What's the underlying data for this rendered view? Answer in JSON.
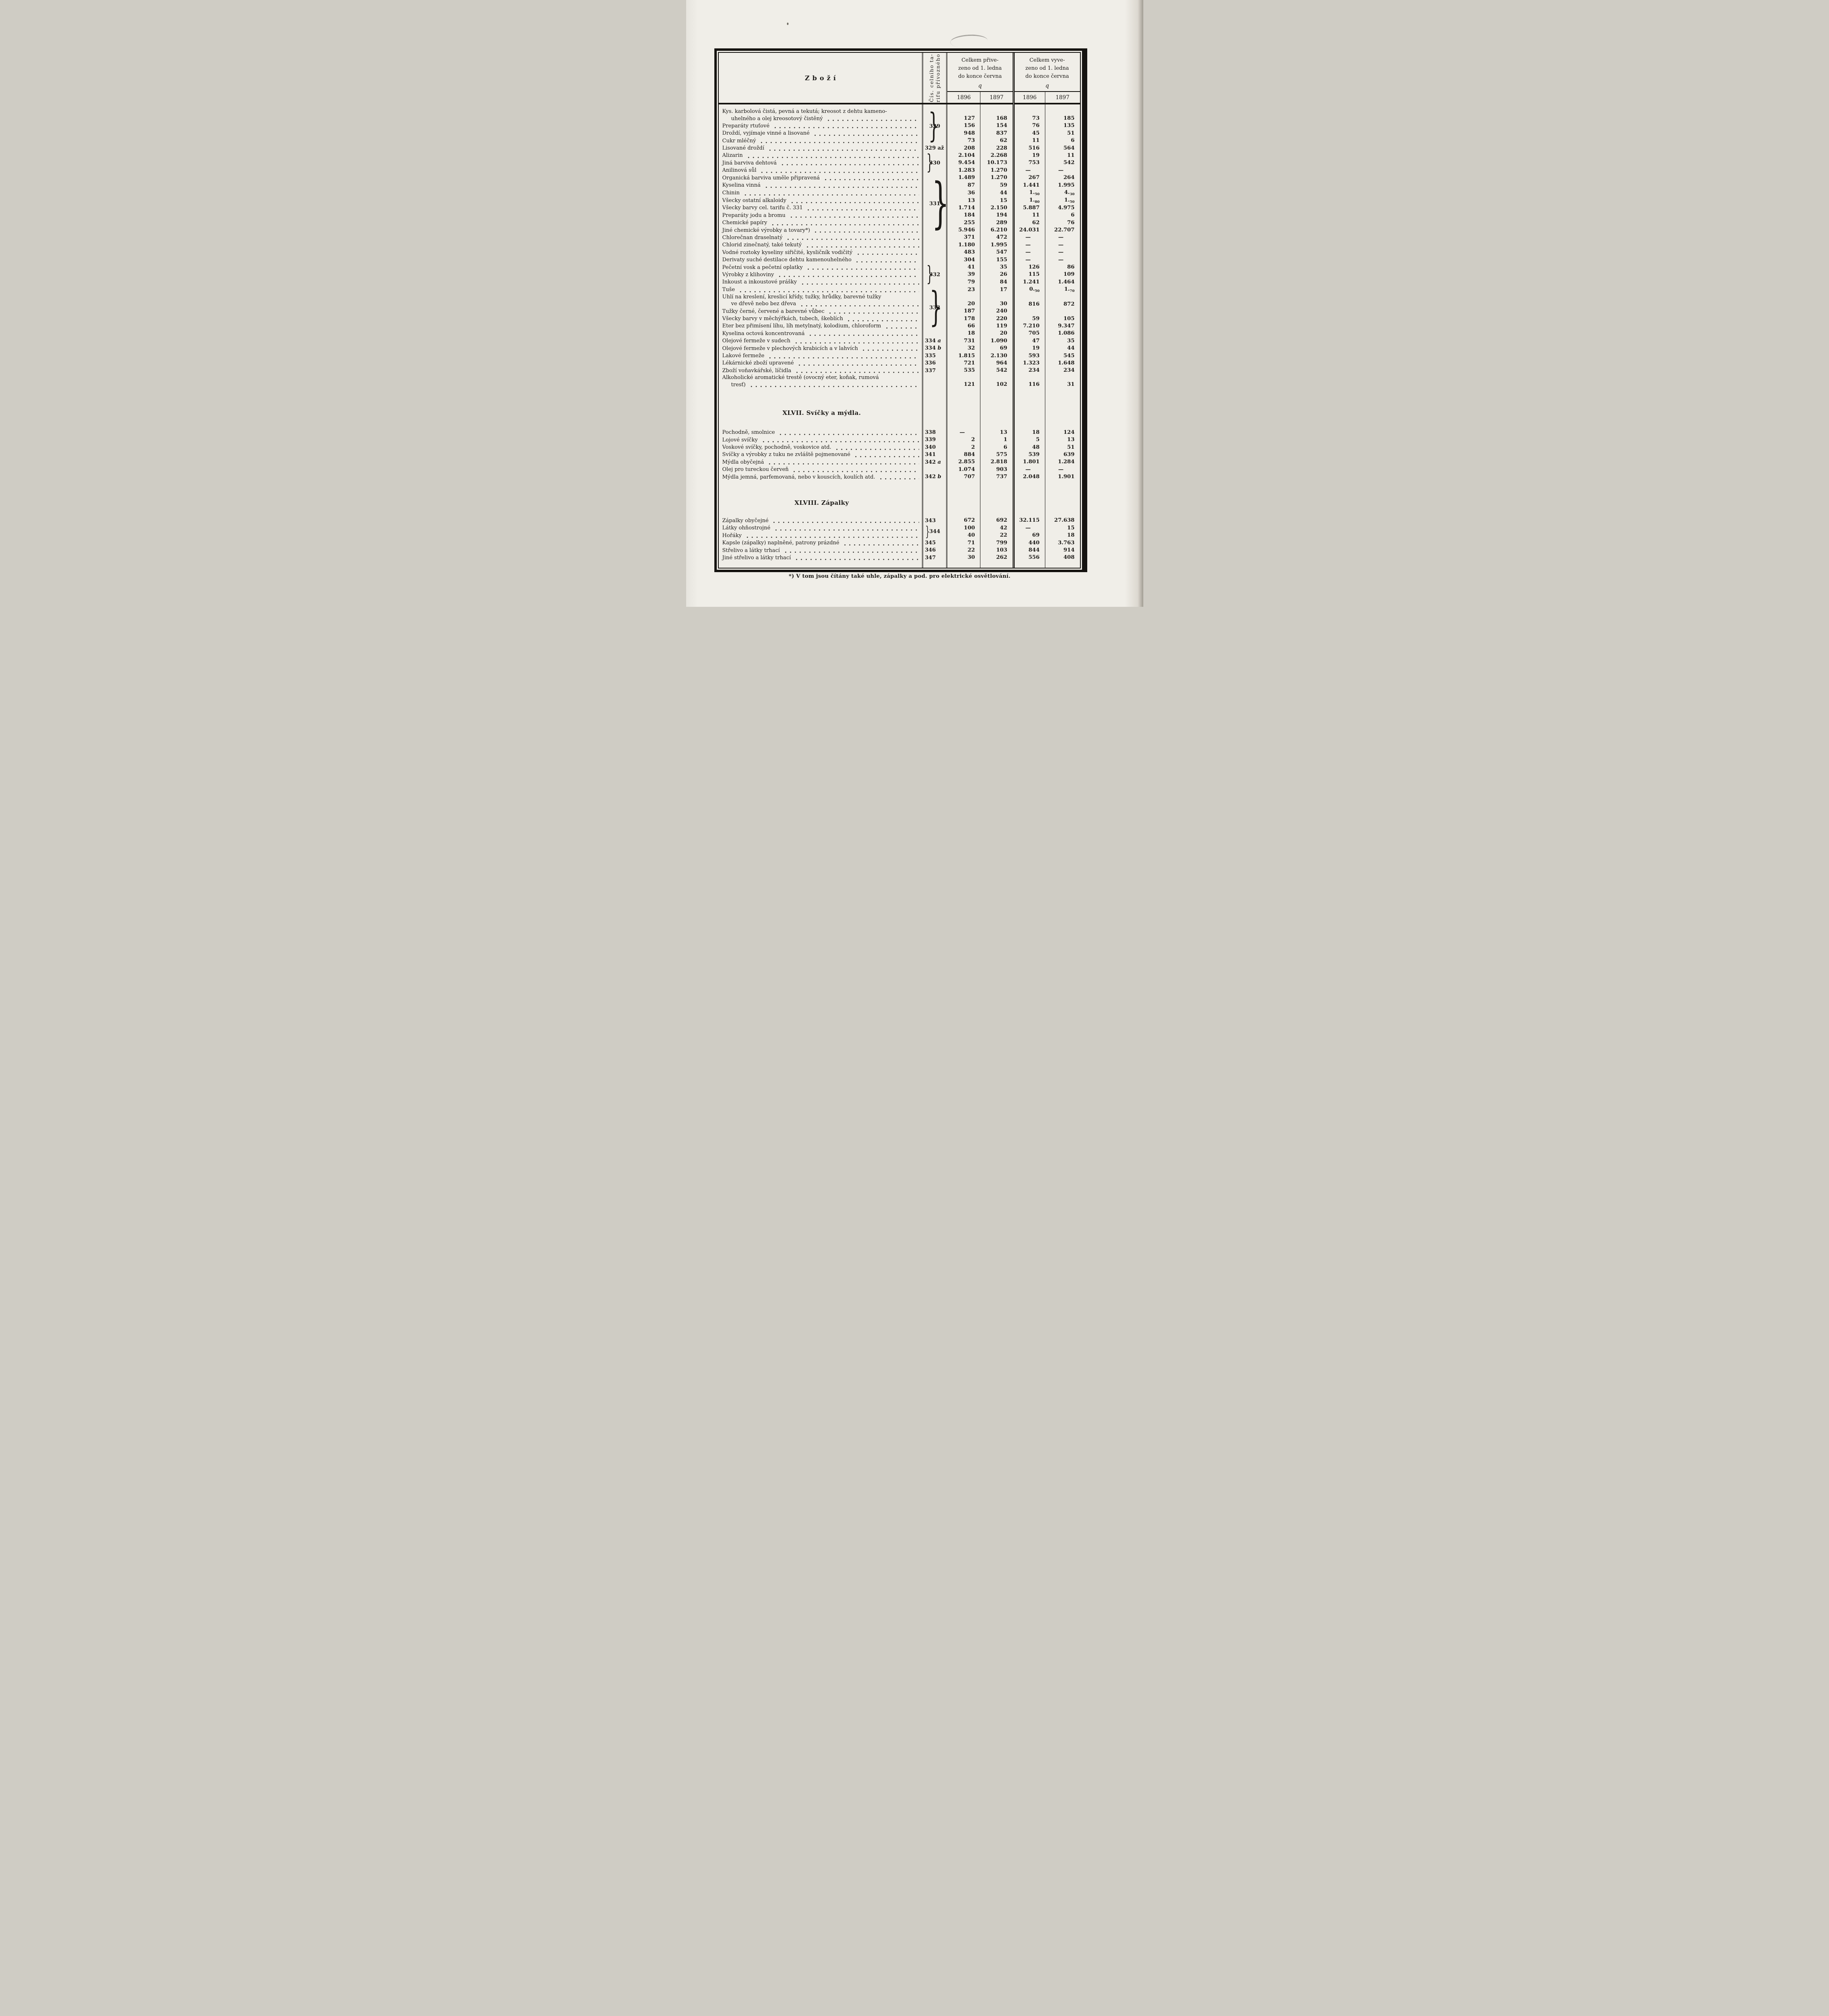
{
  "colors": {
    "paper": "#f0eee8",
    "ink": "#1c1a17",
    "frame": "#151310"
  },
  "table": {
    "header": {
      "goods_label": "Zboží",
      "tariff_col_lines": [
        "Čís. celního ta-",
        "rifu přívozného"
      ],
      "import_lines": [
        "Celkem přive-",
        "zeno od 1. ledna",
        "do konce června"
      ],
      "export_lines": [
        "Celkem vyve-",
        "zeno od 1. ledna",
        "do konce června"
      ],
      "unit": "q",
      "years": [
        "1896",
        "1897",
        "1896",
        "1897"
      ]
    },
    "sections": [
      {
        "heading": null,
        "rows": [
          {
            "label": [
              "Kys. karbolová čistá, pevná a tekutá; kreosot z dehtu kameno-",
              "uhelného a olej kreosotový čistěný"
            ],
            "tariff": {
              "text": "329",
              "span": 4,
              "brace": true
            },
            "v": [
              "127",
              "168",
              "73",
              "185"
            ]
          },
          {
            "label": "Preparáty rtuťové",
            "tariff": "skip",
            "v": [
              "156",
              "154",
              "76",
              "135"
            ]
          },
          {
            "label": "Droždí, vyjímaje vinné a lisované",
            "tariff": "skip",
            "v": [
              "948",
              "837",
              "45",
              "51"
            ]
          },
          {
            "label": "Cukr mléčný",
            "tariff": "skip",
            "v": [
              "73",
              "62",
              "11",
              "6"
            ]
          },
          {
            "label": "Lisované droždí",
            "tariff": {
              "text": "329 až",
              "span": 1,
              "brace": false
            },
            "v": [
              "208",
              "228",
              "516",
              "564"
            ]
          },
          {
            "label": "Alizarin",
            "tariff": {
              "text": "330",
              "span": 3,
              "brace": true
            },
            "v": [
              "2.104",
              "2.268",
              "19",
              "11"
            ]
          },
          {
            "label": "Jiná barviva dehtová",
            "tariff": "skip",
            "v": [
              "9.454",
              "10.173",
              "753",
              "542"
            ]
          },
          {
            "label": "Anilinová sůl",
            "tariff": "skip",
            "v": [
              "1.283",
              "1.270",
              "—",
              "—"
            ]
          },
          {
            "label": "Organická barviva uměle připravená",
            "tariff": {
              "text": "331",
              "span": 8,
              "brace": true
            },
            "v": [
              "1.489",
              "1.270",
              "267",
              "264"
            ]
          },
          {
            "label": "Kyselina vinná",
            "tariff": "skip",
            "v": [
              "87",
              "59",
              "1.441",
              "1.995"
            ]
          },
          {
            "label": "Chinin",
            "tariff": "skip",
            "v": [
              "36",
              "44",
              "1.~50",
              "4.~30"
            ]
          },
          {
            "label": "Všecky ostatní alkaloidy",
            "tariff": "skip",
            "v": [
              "13",
              "15",
              "1.~80",
              "1.~50"
            ]
          },
          {
            "label": "Všecky barvy cel. tarifu č. 331",
            "tariff": "skip",
            "v": [
              "1.714",
              "2.150",
              "5.887",
              "4.975"
            ]
          },
          {
            "label": "Preparáty jodu a bromu",
            "tariff": "skip",
            "v": [
              "184",
              "194",
              "11",
              "6"
            ]
          },
          {
            "label": "Chemické papíry",
            "tariff": "skip",
            "v": [
              "255",
              "289",
              "62",
              "76"
            ]
          },
          {
            "label": "Jiné chemické výrobky a tovary*)",
            "tariff": "skip",
            "v": [
              "5.946",
              "6.210",
              "24.031",
              "22.707"
            ]
          },
          {
            "label": "Chlorečnan draselnatý",
            "tariff": null,
            "v": [
              "371",
              "472",
              "—",
              "—"
            ]
          },
          {
            "label": "Chlorid zinečnatý, také tekutý",
            "tariff": null,
            "v": [
              "1.180",
              "1.995",
              "—",
              "—"
            ]
          },
          {
            "label": "Vodné roztoky kyseliny siřičité, kysličník vodičitý",
            "tariff": null,
            "v": [
              "483",
              "547",
              "—",
              "—"
            ]
          },
          {
            "label": "Derivaty suché destilace dehtu kamenouhelného",
            "tariff": null,
            "v": [
              "304",
              "155",
              "—",
              "—"
            ]
          },
          {
            "label": "Pečetní vosk a pečetní oplatky",
            "tariff": {
              "text": "332",
              "span": 3,
              "brace": true
            },
            "v": [
              "41",
              "35",
              "126",
              "86"
            ]
          },
          {
            "label": "Výrobky z klihoviny",
            "tariff": "skip",
            "v": [
              "39",
              "26",
              "115",
              "109"
            ]
          },
          {
            "label": "Inkoust a inkoustové prášky",
            "tariff": "skip",
            "v": [
              "79",
              "84",
              "1.241",
              "1.464"
            ]
          },
          {
            "label": "Tuše",
            "tariff": {
              "text": "333",
              "span": 5,
              "brace": true
            },
            "v": [
              "23",
              "17",
              "0.~50",
              "1.~70"
            ]
          },
          {
            "label": [
              "Uhlí na kreslení, kreslicí křídy, tužky, hrůdky, barevné tužky",
              "ve dřevě nebo bez dřeva"
            ],
            "tariff": "skip",
            "v": [
              "20",
              "30",
              {
                "t": "816",
                "span": 2
              },
              {
                "t": "872",
                "span": 2
              }
            ]
          },
          {
            "label": "Tužky černé, červené a barevné vůbec",
            "tariff": "skip",
            "v": [
              "187",
              "240",
              "skip",
              "skip"
            ]
          },
          {
            "label": "Všecky barvy v měchýřkách, tubech, škeblích",
            "tariff": "skip",
            "v": [
              "178",
              "220",
              "59",
              "105"
            ]
          },
          {
            "label": "Eter bez přimísení líhu, líh metylnatý, kolodium, chloroform",
            "tariff": "skip",
            "v": [
              "66",
              "119",
              "7.210",
              "9.347"
            ]
          },
          {
            "label": "Kyselina octová koncentrovaná",
            "tariff": null,
            "v": [
              "18",
              "20",
              "705",
              "1.086"
            ]
          },
          {
            "label": "Olejové fermeže v sudech",
            "tariff": {
              "text": "334 a",
              "span": 1,
              "brace": false
            },
            "v": [
              "731",
              "1.090",
              "47",
              "35"
            ]
          },
          {
            "label": "Olejové fermeže v plechových krabicích a v lahvích",
            "tariff": {
              "text": "334 b",
              "span": 1,
              "brace": false
            },
            "v": [
              "32",
              "69",
              "19",
              "44"
            ]
          },
          {
            "label": "Lakové fermeže",
            "tariff": {
              "text": "335",
              "span": 1,
              "brace": false
            },
            "v": [
              "1.815",
              "2.130",
              "593",
              "545"
            ]
          },
          {
            "label": "Lékárnické zboží upravené",
            "tariff": {
              "text": "336",
              "span": 1,
              "brace": false
            },
            "v": [
              "721",
              "964",
              "1.323",
              "1.648"
            ]
          },
          {
            "label": "Zboží voňavkářské, líčidla",
            "tariff": {
              "text": "337",
              "span": 1,
              "brace": false
            },
            "v": [
              "535",
              "542",
              "234",
              "234"
            ]
          },
          {
            "label": [
              "Alkoholické aromatické trestě (ovocný eter, koňak, rumová",
              "tresť)"
            ],
            "tariff": null,
            "v": [
              "121",
              "102",
              "116",
              "31"
            ]
          }
        ]
      },
      {
        "heading": "XLVII. Svíčky a mýdla.",
        "rows": [
          {
            "label": "Pochodně, smolnice",
            "tariff": {
              "text": "338",
              "span": 1,
              "brace": false
            },
            "v": [
              "—",
              "13",
              "18",
              "124"
            ]
          },
          {
            "label": "Lojové svíčky",
            "tariff": {
              "text": "339",
              "span": 1,
              "brace": false
            },
            "v": [
              "2",
              "1",
              "5",
              "13"
            ]
          },
          {
            "label": "Voskové svíčky, pochodně, voskovice atd.",
            "tariff": {
              "text": "340",
              "span": 1,
              "brace": false
            },
            "v": [
              "2",
              "6",
              "48",
              "51"
            ]
          },
          {
            "label": "Svíčky a výrobky z tuku ne zvláště pojmenované",
            "tariff": {
              "text": "341",
              "span": 1,
              "brace": false
            },
            "v": [
              "884",
              "575",
              "539",
              "639"
            ]
          },
          {
            "label": "Mýdla obyčejná",
            "tariff": {
              "text": "342 a",
              "span": 1,
              "brace": false
            },
            "v": [
              "2.855",
              "2.818",
              "1.801",
              "1.284"
            ]
          },
          {
            "label": "Olej pro tureckou červeň",
            "tariff": null,
            "v": [
              "1.074",
              "903",
              "—",
              "—"
            ]
          },
          {
            "label": "Mýdla jemná, parfemovaná, nebo v kouscích, koulích atd.",
            "tariff": {
              "text": "342 b",
              "span": 1,
              "brace": false
            },
            "v": [
              "707",
              "737",
              "2.048",
              "1.901"
            ]
          }
        ]
      },
      {
        "heading": "XLVIII. Zápalky",
        "rows": [
          {
            "label": "Zápalky obyčejné",
            "tariff": {
              "text": "343",
              "span": 1,
              "brace": false
            },
            "v": [
              "672",
              "692",
              "32.115",
              "27.638"
            ]
          },
          {
            "label": "Látky ohňostrojné",
            "tariff": {
              "text": "344",
              "span": 2,
              "brace": true
            },
            "v": [
              "100",
              "42",
              "—",
              "15"
            ]
          },
          {
            "label": "Hořáky",
            "tariff": "skip",
            "v": [
              "40",
              "22",
              "69",
              "18"
            ]
          },
          {
            "label": "Kapsle (zápalky) naplněné, patrony prázdné",
            "tariff": {
              "text": "345",
              "span": 1,
              "brace": false
            },
            "v": [
              "71",
              "799",
              "440",
              "3.763"
            ]
          },
          {
            "label": "Střelivo a látky trhací",
            "tariff": {
              "text": "346",
              "span": 1,
              "brace": false
            },
            "v": [
              "22",
              "103",
              "844",
              "914"
            ]
          },
          {
            "label": "Jiné střelivo a látky trhací",
            "tariff": {
              "text": "347",
              "span": 1,
              "brace": false
            },
            "v": [
              "30",
              "262",
              "556",
              "408"
            ]
          }
        ]
      }
    ],
    "footnote": "*) V tom jsou čítány také uhle, zápalky a pod. pro elektrické osvětlování."
  }
}
